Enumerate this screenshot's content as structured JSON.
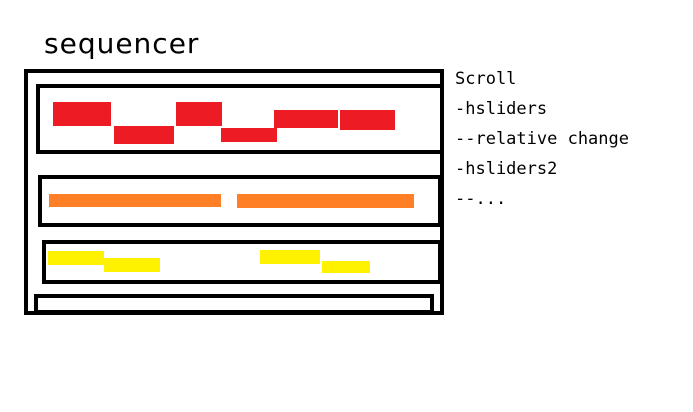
{
  "title": "sequencer",
  "notes": [
    "Scroll",
    "-hsliders",
    "--relative change",
    "-hsliders2",
    "--..."
  ],
  "colors": {
    "outline": "#000000",
    "track1": "#ed1c24",
    "track2": "#ff7f27",
    "track3": "#fff200",
    "background": "#ffffff"
  }
}
